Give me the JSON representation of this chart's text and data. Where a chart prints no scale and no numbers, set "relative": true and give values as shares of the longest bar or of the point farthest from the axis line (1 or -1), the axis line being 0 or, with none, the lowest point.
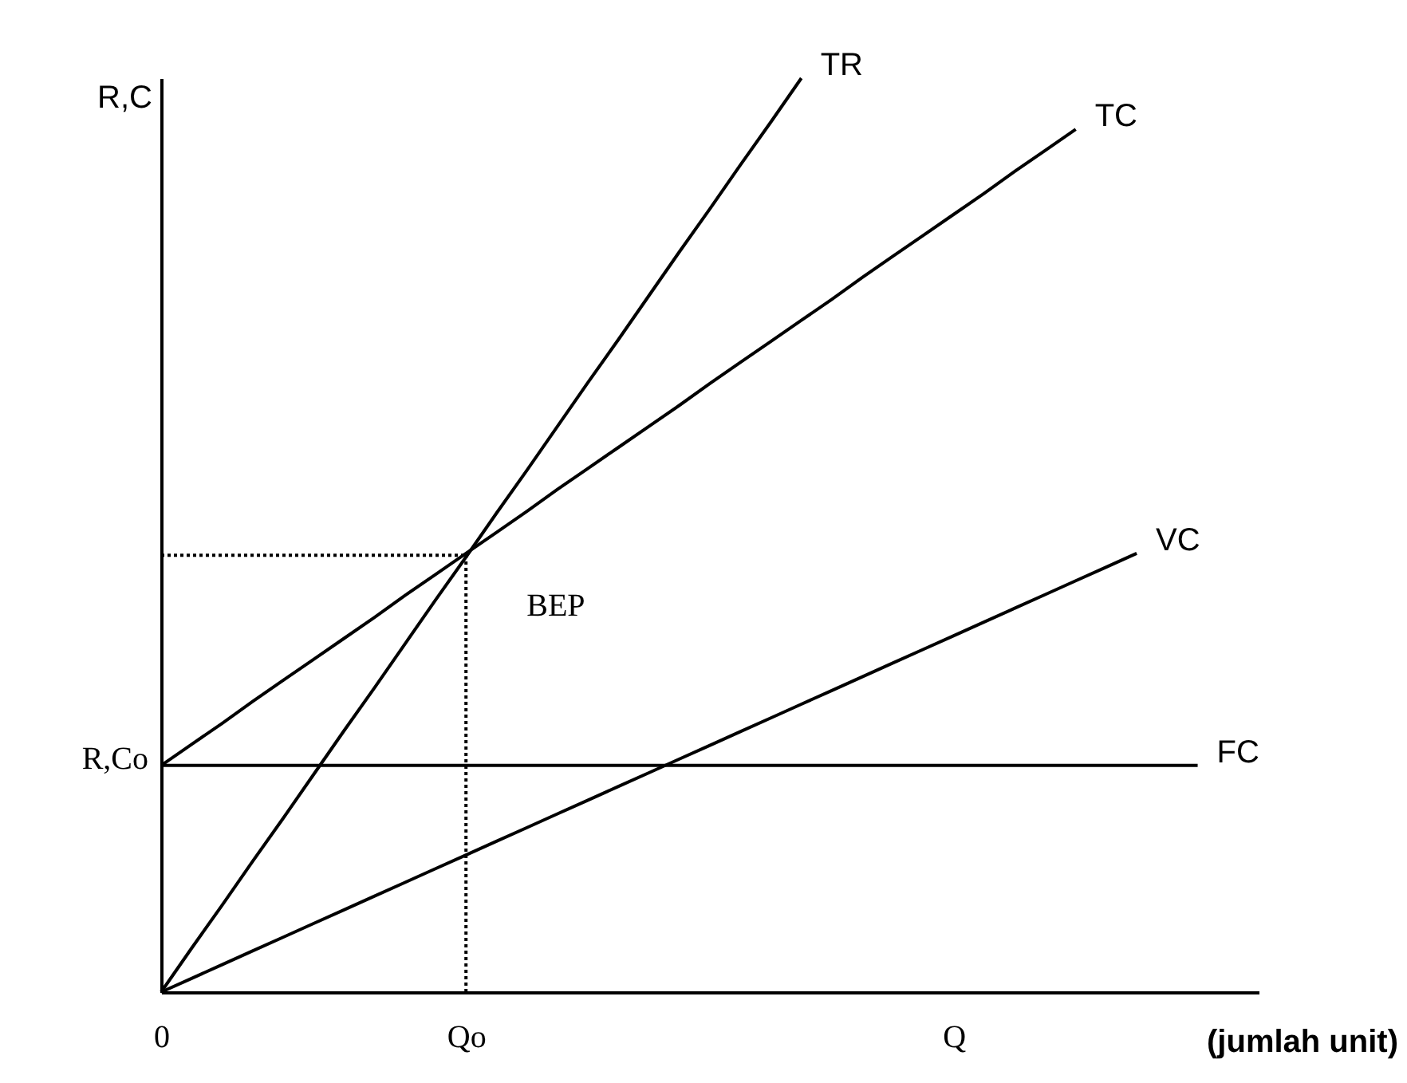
{
  "chart_data": {
    "type": "line",
    "relative": true,
    "ylabel": "R,C",
    "xlabel": "(jumlah unit)",
    "categories": [
      "0",
      null,
      null,
      null,
      null,
      null,
      null,
      null,
      null,
      null,
      "Qo",
      null,
      null,
      null,
      null,
      null,
      null,
      null,
      null,
      null,
      null,
      null,
      null,
      null,
      null,
      null,
      "Q",
      null,
      null,
      null,
      null,
      null,
      null,
      null,
      null,
      null,
      null
    ],
    "series": [
      {
        "name": "TR",
        "color": "#000000",
        "values": [
          0,
          0.048,
          0.095,
          0.143,
          0.19,
          0.238,
          0.286,
          0.333,
          0.381,
          0.429,
          0.476,
          0.524,
          0.571,
          0.619,
          0.667,
          0.714,
          0.762,
          0.81,
          0.857,
          0.905,
          0.952,
          1,
          null,
          null,
          null,
          null,
          null,
          null,
          null,
          null,
          null,
          null,
          null,
          null,
          null,
          null,
          null
        ]
      },
      {
        "name": "TC",
        "color": "#000000",
        "values": [
          0.248,
          0.271,
          0.294,
          0.318,
          0.341,
          0.364,
          0.387,
          0.41,
          0.434,
          0.457,
          0.48,
          0.503,
          0.526,
          0.55,
          0.573,
          0.596,
          0.619,
          0.642,
          0.666,
          0.689,
          0.712,
          0.735,
          0.758,
          0.782,
          0.805,
          0.828,
          0.851,
          0.874,
          0.898,
          0.921,
          0.944,
          null,
          null,
          null,
          null,
          null,
          null
        ]
      },
      {
        "name": "VC",
        "color": "#000000",
        "values": [
          0,
          0.015,
          0.03,
          0.045,
          0.06,
          0.075,
          0.09,
          0.105,
          0.12,
          0.135,
          0.15,
          0.165,
          0.18,
          0.195,
          0.21,
          0.225,
          0.24,
          0.255,
          0.27,
          0.285,
          0.3,
          0.315,
          0.33,
          0.345,
          0.36,
          0.375,
          0.39,
          0.405,
          0.42,
          0.435,
          0.45,
          0.465,
          0.48,
          null,
          null,
          null,
          null
        ]
      },
      {
        "name": "FC",
        "color": "#000000",
        "values": [
          0.248,
          0.248,
          0.248,
          0.248,
          0.248,
          0.248,
          0.248,
          0.248,
          0.248,
          0.248,
          0.248,
          0.248,
          0.248,
          0.248,
          0.248,
          0.248,
          0.248,
          0.248,
          0.248,
          0.248,
          0.248,
          0.248,
          0.248,
          0.248,
          0.248,
          0.248,
          0.248,
          0.248,
          0.248,
          0.248,
          0.248,
          0.248,
          0.248,
          0.248,
          0.248,
          null,
          null
        ]
      }
    ],
    "ref_lines": [
      {
        "axis": "x",
        "value": "Qo",
        "line_style": "dotted",
        "color": "#000000"
      },
      {
        "axis": "y",
        "value": 0.478,
        "line_style": "dotted",
        "color": "#000000"
      }
    ],
    "annotations": [
      {
        "text": "R,Co",
        "x": "0",
        "y": 0.248
      },
      {
        "text": "BEP",
        "x": "Qo",
        "y": 0.478
      }
    ]
  }
}
